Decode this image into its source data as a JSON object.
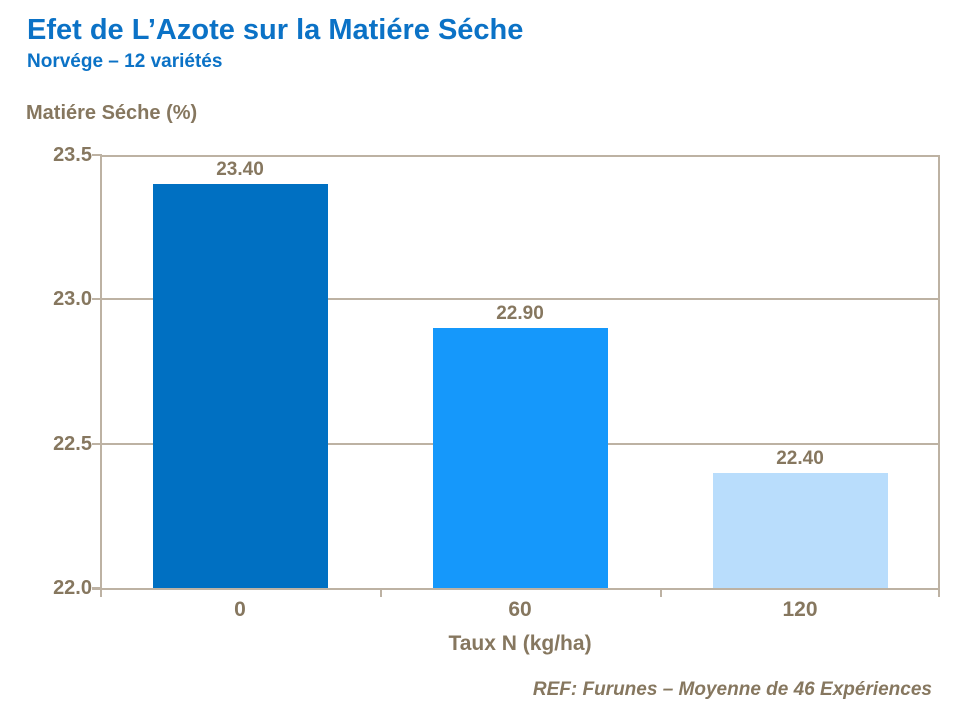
{
  "header": {
    "title": "Efet de L’Azote sur la Matiére Séche",
    "subtitle": "Norvége – 12 variétés"
  },
  "chart_data": {
    "type": "bar",
    "title": "Efet de L’Azote sur la Matiére Séche",
    "subtitle": "Norvége – 12 variétés",
    "categories": [
      "0",
      "60",
      "120"
    ],
    "values": [
      23.4,
      22.9,
      22.4
    ],
    "value_labels": [
      "23.40",
      "22.90",
      "22.40"
    ],
    "bar_colors": [
      "#0070C2",
      "#1598FB",
      "#B9DDFC"
    ],
    "xlabel": "Taux N (kg/ha)",
    "ylabel": "Matiére Séche (%)",
    "ylim": [
      22.0,
      23.5
    ],
    "yticks": [
      23.5,
      23.0,
      22.5,
      22.0
    ],
    "ytick_labels": [
      "23.5",
      "23.0",
      "22.5",
      "22.0"
    ],
    "grid": "horizontal",
    "legend": "none"
  },
  "footer": {
    "reference": "REF: Furunes – Moyenne de 46 Expériences"
  },
  "colors": {
    "accent_blue": "#0B72C6",
    "text_taupe": "#86775F",
    "axis_line": "#BDB2A3"
  }
}
